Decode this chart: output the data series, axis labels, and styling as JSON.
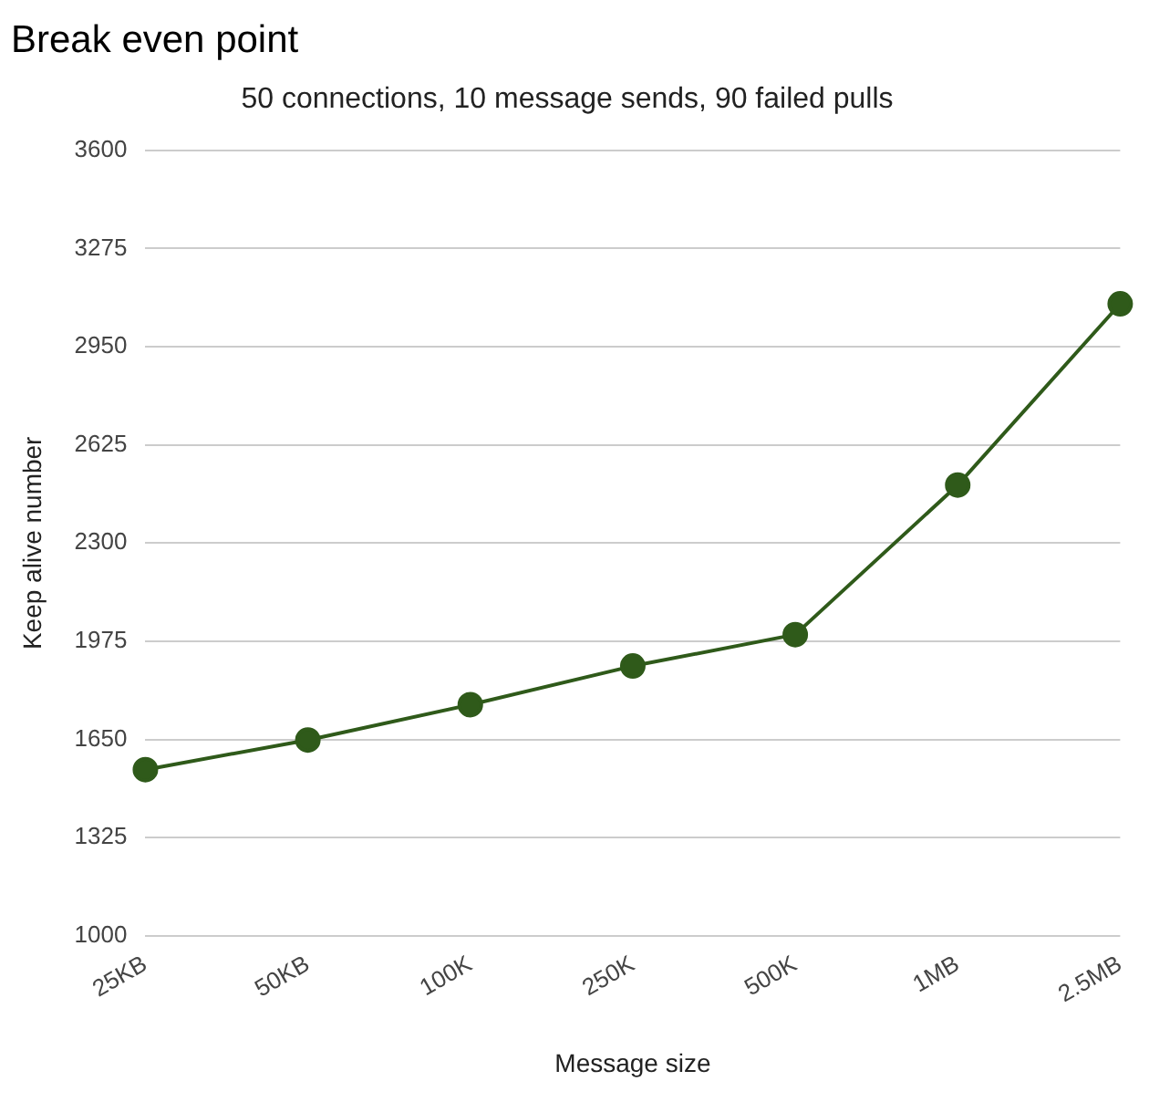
{
  "chart_data": {
    "type": "line",
    "title": "Break even point",
    "subtitle": "50 connections, 10 message sends, 90 failed pulls",
    "xlabel": "Message size",
    "ylabel": "Keep alive number",
    "categories": [
      "25KB",
      "50KB",
      "100K",
      "250K",
      "500K",
      "1MB",
      "2.5MB"
    ],
    "series": [
      {
        "color": "#2f5a1a",
        "values": [
          1550,
          1648,
          1765,
          1893,
          1997,
          2492,
          3092
        ]
      }
    ],
    "ylim": [
      1000,
      3600
    ],
    "yticks": [
      1000,
      1325,
      1650,
      1975,
      2300,
      2625,
      2950,
      3275,
      3600
    ],
    "grid": "y",
    "legend": false,
    "marker": "circle",
    "line_style": "solid"
  }
}
